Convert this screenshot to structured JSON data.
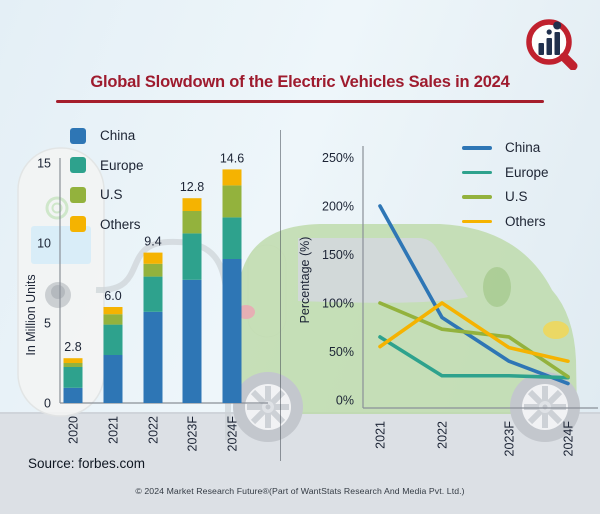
{
  "header": {
    "title": "Global Slowdown of the Electric Vehicles Sales in 2024",
    "logo": "market-research-future-logo"
  },
  "footer": {
    "source": "Source: forbes.com",
    "copyright": "© 2024 Market Research Future®(Part of WantStats Research And Media Pvt. Ltd.)"
  },
  "colors": {
    "china": "#2E76B5",
    "europe": "#2EA28D",
    "us": "#93B23D",
    "others": "#F5B301",
    "title_red": "#9E1B2E",
    "underline_red": "#A51E2C",
    "axis_text": "#1C2435",
    "axis_line": "#8A9098"
  },
  "chart_data": [
    {
      "type": "bar",
      "stacked": true,
      "name": "ev-sales-in-million-units",
      "title": "",
      "xlabel": "",
      "ylabel": "In Million Units",
      "categories": [
        "2020",
        "2021",
        "2022",
        "2023F",
        "2024F"
      ],
      "series": [
        {
          "name": "China",
          "color": "china",
          "values": [
            0.95,
            3.0,
            5.7,
            7.7,
            9.0
          ]
        },
        {
          "name": "Europe",
          "color": "europe",
          "values": [
            1.3,
            1.9,
            2.2,
            2.9,
            2.6
          ]
        },
        {
          "name": "U.S",
          "color": "us",
          "values": [
            0.25,
            0.65,
            0.8,
            1.4,
            2.0
          ]
        },
        {
          "name": "Others",
          "color": "others",
          "values": [
            0.3,
            0.45,
            0.7,
            0.8,
            1.0
          ]
        }
      ],
      "total_labels": [
        "2.8",
        "6.0",
        "9.4",
        "12.8",
        "14.6"
      ],
      "yticks": [
        0,
        5,
        10,
        15
      ],
      "ylim": [
        0,
        15
      ],
      "grid": false,
      "legend_position": "top-left"
    },
    {
      "type": "line",
      "name": "ev-sales-growth-percentage",
      "title": "",
      "xlabel": "",
      "ylabel": "Percentage (%)",
      "categories": [
        "2021",
        "2022",
        "2023F",
        "2024F"
      ],
      "series": [
        {
          "name": "China",
          "color": "china",
          "values": [
            200,
            85,
            40,
            17
          ]
        },
        {
          "name": "Europe",
          "color": "europe",
          "values": [
            65,
            25,
            25,
            23
          ]
        },
        {
          "name": "U.S",
          "color": "us",
          "values": [
            100,
            73,
            65,
            24
          ]
        },
        {
          "name": "Others",
          "color": "others",
          "values": [
            55,
            100,
            54,
            40
          ]
        }
      ],
      "ytick_labels": [
        "0%",
        "50%",
        "100%",
        "150%",
        "200%",
        "250%"
      ],
      "ytick_values": [
        0,
        50,
        100,
        150,
        200,
        250
      ],
      "ylim": [
        0,
        260
      ],
      "grid": false,
      "legend_position": "top-right"
    }
  ]
}
